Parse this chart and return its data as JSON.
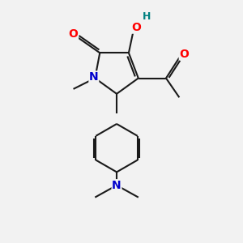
{
  "bg_color": "#f2f2f2",
  "bond_color": "#1a1a1a",
  "bond_width": 1.5,
  "atom_colors": {
    "O": "#ff0000",
    "N": "#0000cc",
    "H": "#008080",
    "C": "#1a1a1a"
  },
  "figsize": [
    3.0,
    3.0
  ],
  "dpi": 100
}
